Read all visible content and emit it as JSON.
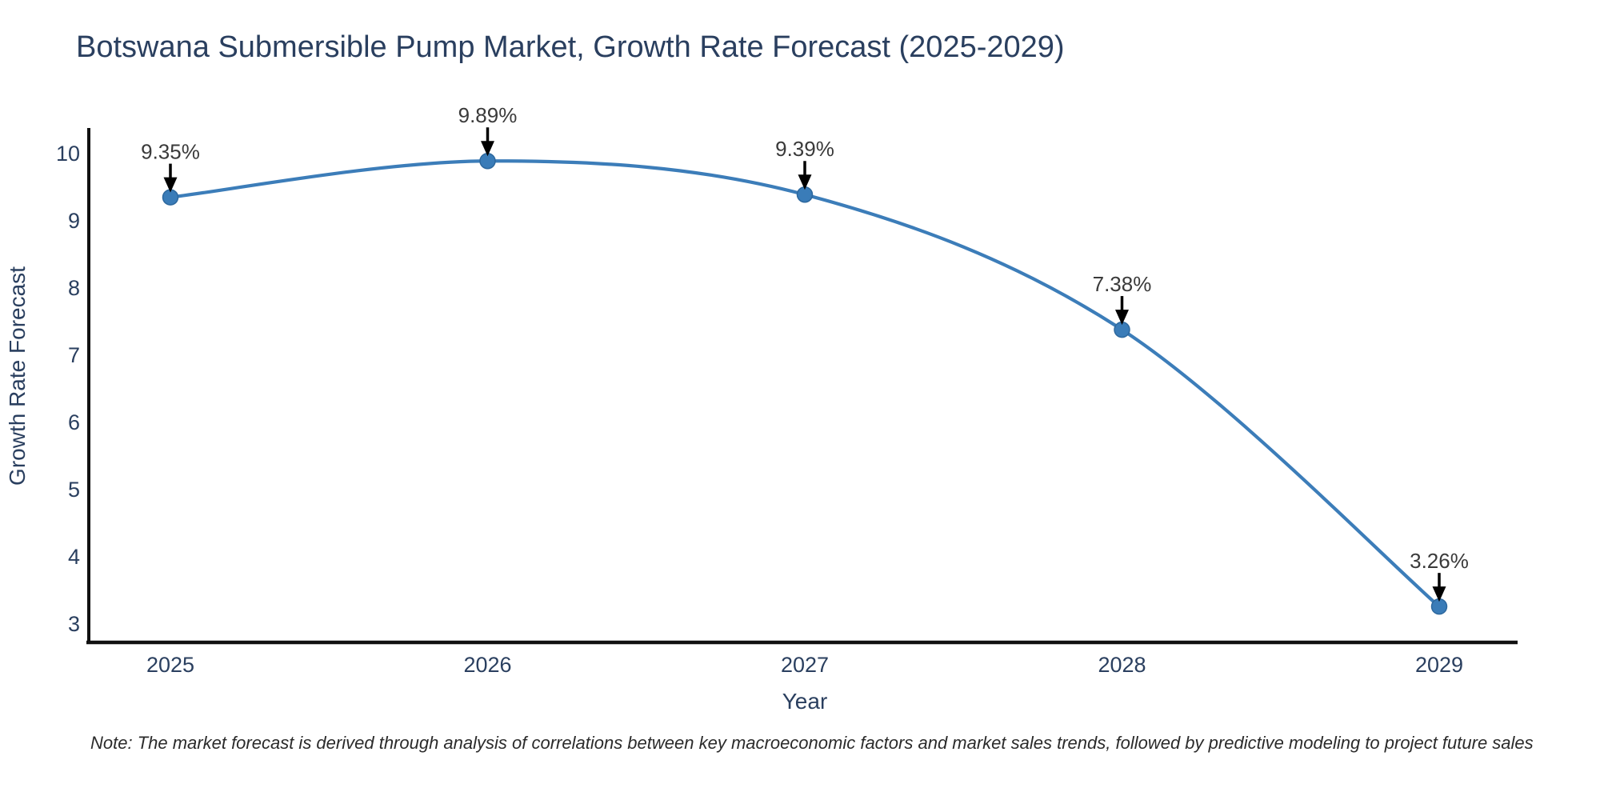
{
  "title": "Botswana Submersible Pump Market, Growth Rate Forecast (2025-2029)",
  "note": "Note: The market forecast is derived through analysis of correlations between key macroeconomic factors and market sales trends, followed by predictive modeling to project future sales",
  "chart_data": {
    "type": "line",
    "title": "Botswana Submersible Pump Market, Growth Rate Forecast (2025-2029)",
    "xlabel": "Year",
    "ylabel": "Growth Rate Forecast",
    "x": [
      "2025",
      "2026",
      "2027",
      "2028",
      "2029"
    ],
    "series": [
      {
        "name": "Growth Rate Forecast",
        "values": [
          9.35,
          9.89,
          9.39,
          7.38,
          3.26
        ]
      }
    ],
    "point_labels": [
      "9.35%",
      "9.89%",
      "9.39%",
      "7.38%",
      "3.26%"
    ],
    "y_ticks": [
      3,
      4,
      5,
      6,
      7,
      8,
      9,
      10
    ],
    "ylim": [
      2.73,
      10.38
    ],
    "line_shape": "spline",
    "grid": false,
    "legend_position": "none",
    "line_color": "#3c7db9",
    "marker_color": "#3a7cb8",
    "marker_edge_color": "#2d689e",
    "axis_color": "#111111",
    "text_color": "#2a3f5f",
    "annotation_color": "#3a3a3a",
    "arrow_color": "#000000",
    "background_color": "#ffffff"
  }
}
